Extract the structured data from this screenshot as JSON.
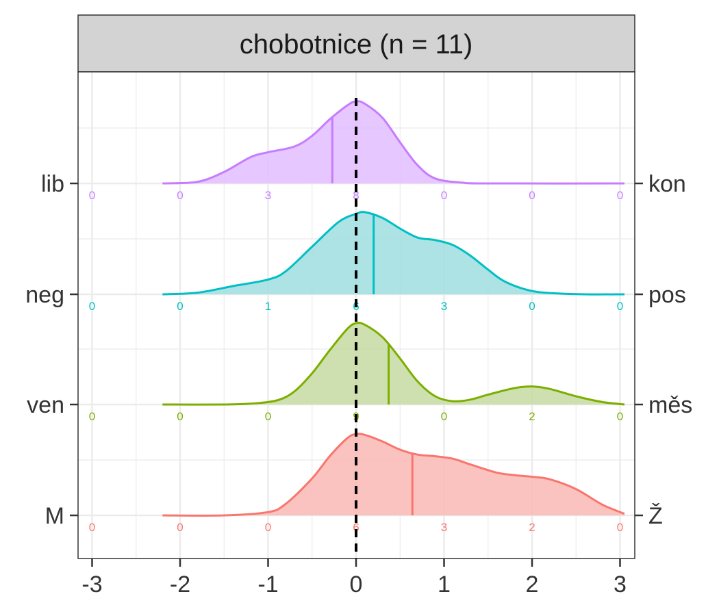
{
  "chart_data": {
    "type": "ridgeline",
    "title": "chobotnice (n = 11)",
    "xlabel": "",
    "ylabel": "",
    "xlim": [
      -3,
      3
    ],
    "x_ticks": [
      -3,
      -2,
      -1,
      0,
      1,
      2,
      3
    ],
    "x_tick_labels": [
      "-3",
      "-2",
      "-1",
      "0",
      "1",
      "2",
      "3"
    ],
    "grid": true,
    "reference_line": {
      "x": 0,
      "style": "dashed",
      "color": "#000000"
    },
    "count_positions": [
      -3,
      -2,
      -1,
      0,
      1,
      2,
      3
    ],
    "series": [
      {
        "left_label": "lib",
        "right_label": "kon",
        "color": "#C77CFF",
        "fill": "#E2BDFF",
        "mean": -0.27,
        "counts": [
          "0",
          "0",
          "3",
          "8",
          "0",
          "0",
          "0"
        ],
        "density": [
          [
            -2.2,
            0.0
          ],
          [
            -1.8,
            0.02
          ],
          [
            -1.5,
            0.14
          ],
          [
            -1.2,
            0.32
          ],
          [
            -1.0,
            0.38
          ],
          [
            -0.7,
            0.45
          ],
          [
            -0.5,
            0.58
          ],
          [
            -0.3,
            0.78
          ],
          [
            -0.1,
            0.95
          ],
          [
            0.0,
            1.0
          ],
          [
            0.1,
            0.97
          ],
          [
            0.3,
            0.8
          ],
          [
            0.5,
            0.5
          ],
          [
            0.7,
            0.22
          ],
          [
            0.9,
            0.06
          ],
          [
            1.2,
            0.01
          ],
          [
            1.5,
            0.0
          ],
          [
            3.05,
            0.0
          ]
        ]
      },
      {
        "left_label": "neg",
        "right_label": "pos",
        "color": "#00BFC4",
        "fill": "#9FDEE0",
        "mean": 0.2,
        "counts": [
          "0",
          "0",
          "1",
          "6",
          "3",
          "0",
          "0"
        ],
        "density": [
          [
            -2.2,
            0.0
          ],
          [
            -1.8,
            0.02
          ],
          [
            -1.4,
            0.1
          ],
          [
            -1.0,
            0.18
          ],
          [
            -0.8,
            0.28
          ],
          [
            -0.5,
            0.58
          ],
          [
            -0.2,
            0.88
          ],
          [
            0.0,
            0.98
          ],
          [
            0.1,
            1.0
          ],
          [
            0.3,
            0.93
          ],
          [
            0.5,
            0.8
          ],
          [
            0.7,
            0.69
          ],
          [
            0.9,
            0.66
          ],
          [
            1.1,
            0.6
          ],
          [
            1.3,
            0.47
          ],
          [
            1.5,
            0.3
          ],
          [
            1.7,
            0.15
          ],
          [
            2.0,
            0.04
          ],
          [
            2.3,
            0.01
          ],
          [
            2.6,
            0.0
          ],
          [
            3.05,
            0.0
          ]
        ]
      },
      {
        "left_label": "ven",
        "right_label": "měs",
        "color": "#7CAE00",
        "fill": "#C5DBA2",
        "mean": 0.37,
        "counts": [
          "0",
          "0",
          "0",
          "9",
          "0",
          "2",
          "0"
        ],
        "density": [
          [
            -2.2,
            0.0
          ],
          [
            -1.5,
            0.0
          ],
          [
            -1.2,
            0.01
          ],
          [
            -0.9,
            0.05
          ],
          [
            -0.7,
            0.16
          ],
          [
            -0.5,
            0.38
          ],
          [
            -0.3,
            0.66
          ],
          [
            -0.1,
            0.92
          ],
          [
            0.0,
            0.99
          ],
          [
            0.1,
            0.97
          ],
          [
            0.3,
            0.82
          ],
          [
            0.5,
            0.56
          ],
          [
            0.7,
            0.28
          ],
          [
            0.9,
            0.1
          ],
          [
            1.1,
            0.04
          ],
          [
            1.3,
            0.06
          ],
          [
            1.5,
            0.12
          ],
          [
            1.8,
            0.2
          ],
          [
            2.0,
            0.22
          ],
          [
            2.2,
            0.19
          ],
          [
            2.5,
            0.1
          ],
          [
            2.8,
            0.03
          ],
          [
            3.05,
            0.0
          ]
        ]
      },
      {
        "left_label": "M",
        "right_label": "Ž",
        "color": "#F8766D",
        "fill": "#F9B9B5",
        "mean": 0.64,
        "counts": [
          "0",
          "0",
          "0",
          "6",
          "3",
          "2",
          "0"
        ],
        "density": [
          [
            -2.2,
            0.0
          ],
          [
            -1.5,
            0.0
          ],
          [
            -1.0,
            0.04
          ],
          [
            -0.8,
            0.14
          ],
          [
            -0.5,
            0.45
          ],
          [
            -0.3,
            0.72
          ],
          [
            -0.1,
            0.94
          ],
          [
            0.0,
            0.99
          ],
          [
            0.1,
            0.98
          ],
          [
            0.3,
            0.9
          ],
          [
            0.5,
            0.8
          ],
          [
            0.7,
            0.74
          ],
          [
            0.9,
            0.72
          ],
          [
            1.1,
            0.69
          ],
          [
            1.3,
            0.62
          ],
          [
            1.6,
            0.52
          ],
          [
            1.8,
            0.49
          ],
          [
            2.0,
            0.47
          ],
          [
            2.2,
            0.44
          ],
          [
            2.5,
            0.32
          ],
          [
            2.8,
            0.13
          ],
          [
            3.05,
            0.02
          ]
        ]
      }
    ]
  }
}
